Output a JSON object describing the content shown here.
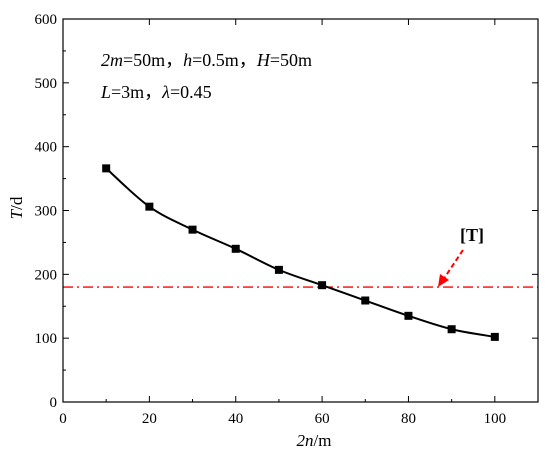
{
  "chart_data": {
    "type": "line",
    "xlabel_italic": "2n",
    "xlabel_unit": "/m",
    "ylabel_italic": "T",
    "ylabel_unit": "/d",
    "xlim": [
      0,
      110
    ],
    "ylim": [
      0,
      600
    ],
    "xticks": [
      0,
      20,
      40,
      60,
      80,
      100
    ],
    "yticks": [
      0,
      100,
      200,
      300,
      400,
      500,
      600
    ],
    "series": [
      {
        "x": [
          10,
          20,
          30,
          40,
          50,
          60,
          70,
          80,
          90,
          100
        ],
        "y": [
          366,
          306,
          270,
          240,
          207,
          183,
          159,
          135,
          114,
          102
        ],
        "color": "#000000",
        "marker": "square"
      }
    ],
    "reference_line": {
      "label": "[T]",
      "y": 180,
      "color": "#ff0000",
      "style": "dash-dot"
    },
    "annotations": {
      "line1": [
        {
          "it": "2m",
          "rest": "=50m，"
        },
        {
          "it": "h",
          "rest": "=0.5m，"
        },
        {
          "it": "H",
          "rest": "=50m"
        }
      ],
      "line2": [
        {
          "it": "L",
          "rest": "=3m，"
        },
        {
          "it": "λ",
          "rest": "=0.45"
        }
      ]
    },
    "grid": false
  }
}
